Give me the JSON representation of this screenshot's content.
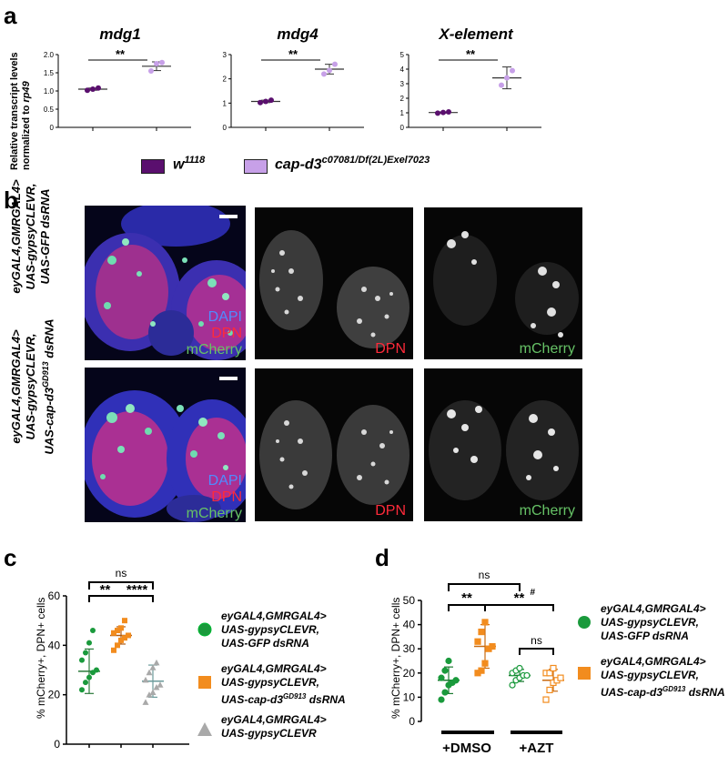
{
  "panel_labels": {
    "a": "a",
    "b": "b",
    "c": "c",
    "d": "d"
  },
  "panel_a": {
    "ylabel_line1": "Relative transcript levels",
    "ylabel_line2": "normalized to ",
    "ylabel_line2_italic": "rp49",
    "significance": "**",
    "legend": {
      "w1118_base": "w",
      "w1118_sup": "1118",
      "cap_base": "cap-d3",
      "cap_sup": "c07081/Df(2L)Exel7023",
      "w1118_color": "#5a0f6e",
      "cap_color": "#c7a0e8"
    }
  },
  "panel_b": {
    "row1_label": [
      "eyGAL4,GMRGAL4>",
      "UAS-gypsyCLEVR,",
      "UAS-GFP dsRNA"
    ],
    "row2_label": [
      "eyGAL4,GMRGAL4>",
      "UAS-gypsyCLEVR,",
      "UAS-cap-d3"
    ],
    "row2_label_sup": "GD913",
    "row2_label_tail": " dsRNA",
    "merge_labels": {
      "dapi": "DAPI",
      "dpn": "DPN",
      "mcherry": "mCherry"
    },
    "single_labels": {
      "dpn": "DPN",
      "mcherry": "mCherry"
    }
  },
  "panel_c": {
    "ylabel": "% mCherry+, DPN+ cells",
    "ns": "ns",
    "sig1": "**",
    "sig2": "****",
    "legend": [
      {
        "lines": [
          "eyGAL4,GMRGAL4>",
          "UAS-gypsyCLEVR,",
          "UAS-GFP dsRNA"
        ],
        "color": "#1a9a3c"
      },
      {
        "lines": [
          "eyGAL4,GMRGAL4>",
          "UAS-gypsyCLEVR,",
          "UAS-cap-d3"
        ],
        "sup": "GD913",
        "tail": " dsRNA",
        "color": "#f28c1e"
      },
      {
        "lines": [
          "eyGAL4,GMRGAL4>",
          "UAS-gypsyCLEVR"
        ],
        "color": "#a9a9a9"
      }
    ]
  },
  "panel_d": {
    "ylabel": "% mCherry+, DPN+ cells",
    "ns_top": "ns",
    "sig1": "**",
    "sig2": "**",
    "sig2_sup": "#",
    "ns_right": "ns",
    "group_dmso": "+DMSO",
    "group_azt": "+AZT",
    "legend": [
      {
        "lines": [
          "eyGAL4,GMRGAL4>",
          "UAS-gypsyCLEVR,",
          "UAS-GFP dsRNA"
        ],
        "color": "#1a9a3c"
      },
      {
        "lines": [
          "eyGAL4,GMRGAL4>",
          "UAS-gypsyCLEVR,",
          "UAS-cap-d3"
        ],
        "sup": "GD913",
        "tail": " dsRNA",
        "color": "#f28c1e"
      }
    ]
  },
  "chart_data": [
    {
      "type": "scatter",
      "title": "mdg1",
      "ylabel": "Relative transcript levels normalized to rp49",
      "ylim": [
        0,
        2
      ],
      "yticks": [
        "0",
        "0.5",
        "1.0",
        "1.5",
        "2.0"
      ],
      "series": [
        {
          "name": "w1118",
          "color": "#5a0f6e",
          "values": [
            1.02,
            1.05,
            1.08
          ],
          "mean": 1.05,
          "sd": 0.03
        },
        {
          "name": "cap-d3 c07081/Df(2L)Exel7023",
          "color": "#c7a0e8",
          "values": [
            1.55,
            1.75,
            1.78
          ],
          "mean": 1.68,
          "sd": 0.12
        }
      ]
    },
    {
      "type": "scatter",
      "title": "mdg4",
      "ylim": [
        0,
        3
      ],
      "yticks": [
        "0",
        "1",
        "2",
        "3"
      ],
      "series": [
        {
          "name": "w1118",
          "color": "#5a0f6e",
          "values": [
            1.02,
            1.07,
            1.12
          ],
          "mean": 1.07,
          "sd": 0.05
        },
        {
          "name": "cap-d3 c07081/Df(2L)Exel7023",
          "color": "#c7a0e8",
          "values": [
            2.2,
            2.35,
            2.6
          ],
          "mean": 2.4,
          "sd": 0.2
        }
      ]
    },
    {
      "type": "scatter",
      "title": "X-element",
      "ylim": [
        0,
        5
      ],
      "yticks": [
        "0",
        "1",
        "2",
        "3",
        "4",
        "5"
      ],
      "series": [
        {
          "name": "w1118",
          "color": "#5a0f6e",
          "values": [
            0.98,
            1.02,
            1.06
          ],
          "mean": 1.02,
          "sd": 0.04
        },
        {
          "name": "cap-d3 c07081/Df(2L)Exel7023",
          "color": "#c7a0e8",
          "values": [
            2.9,
            3.4,
            3.9
          ],
          "mean": 3.4,
          "sd": 0.75
        }
      ]
    },
    {
      "type": "scatter",
      "ylabel": "% mCherry+, DPN+ cells",
      "ylim": [
        0,
        60
      ],
      "yticks": [
        "0",
        "20",
        "40",
        "60"
      ],
      "series": [
        {
          "name": "eyGAL4,GMRGAL4> UAS-gypsyCLEVR, UAS-GFP dsRNA",
          "color": "#1a9a3c",
          "marker": "circle",
          "values": [
            22,
            25,
            27,
            29,
            30,
            34,
            37,
            41,
            46
          ],
          "mean": 29.5,
          "sd": 9
        },
        {
          "name": "eyGAL4,GMRGAL4> UAS-gypsyCLEVR, UAS-cap-d3 GD913 dsRNA",
          "color": "#f28c1e",
          "marker": "square",
          "values": [
            38,
            40,
            42,
            43,
            44,
            45,
            46,
            47,
            50
          ],
          "mean": 44,
          "sd": 3.5
        },
        {
          "name": "eyGAL4,GMRGAL4> UAS-gypsyCLEVR",
          "color": "#a9a9a9",
          "marker": "triangle",
          "values": [
            17,
            20,
            21,
            23,
            24,
            26,
            29,
            31,
            33
          ],
          "mean": 25.5,
          "sd": 6.5
        }
      ]
    },
    {
      "type": "scatter",
      "ylabel": "% mCherry+, DPN+ cells",
      "ylim": [
        0,
        50
      ],
      "yticks": [
        "0",
        "10",
        "20",
        "30",
        "40",
        "50"
      ],
      "categories": [
        "+DMSO",
        "+AZT"
      ],
      "series": [
        {
          "name": "GFP dsRNA +DMSO",
          "color": "#1a9a3c",
          "marker": "circle",
          "filled": true,
          "values": [
            9,
            12,
            15,
            16,
            17,
            18,
            21,
            25
          ],
          "mean": 17,
          "sd": 5.5
        },
        {
          "name": "cap-d3 GD913 dsRNA +DMSO",
          "color": "#f28c1e",
          "marker": "square",
          "filled": true,
          "values": [
            20,
            21,
            24,
            30,
            31,
            33,
            37,
            41
          ],
          "mean": 31,
          "sd": 9
        },
        {
          "name": "GFP dsRNA +AZT",
          "color": "#1a9a3c",
          "marker": "circle",
          "filled": false,
          "values": [
            15,
            17,
            18,
            19,
            19,
            20,
            21,
            22
          ],
          "mean": 19,
          "sd": 2.5
        },
        {
          "name": "cap-d3 GD913 dsRNA +AZT",
          "color": "#f28c1e",
          "marker": "square",
          "filled": false,
          "values": [
            9,
            13,
            16,
            17,
            18,
            20,
            20,
            22
          ],
          "mean": 17,
          "sd": 4.5
        }
      ]
    }
  ]
}
